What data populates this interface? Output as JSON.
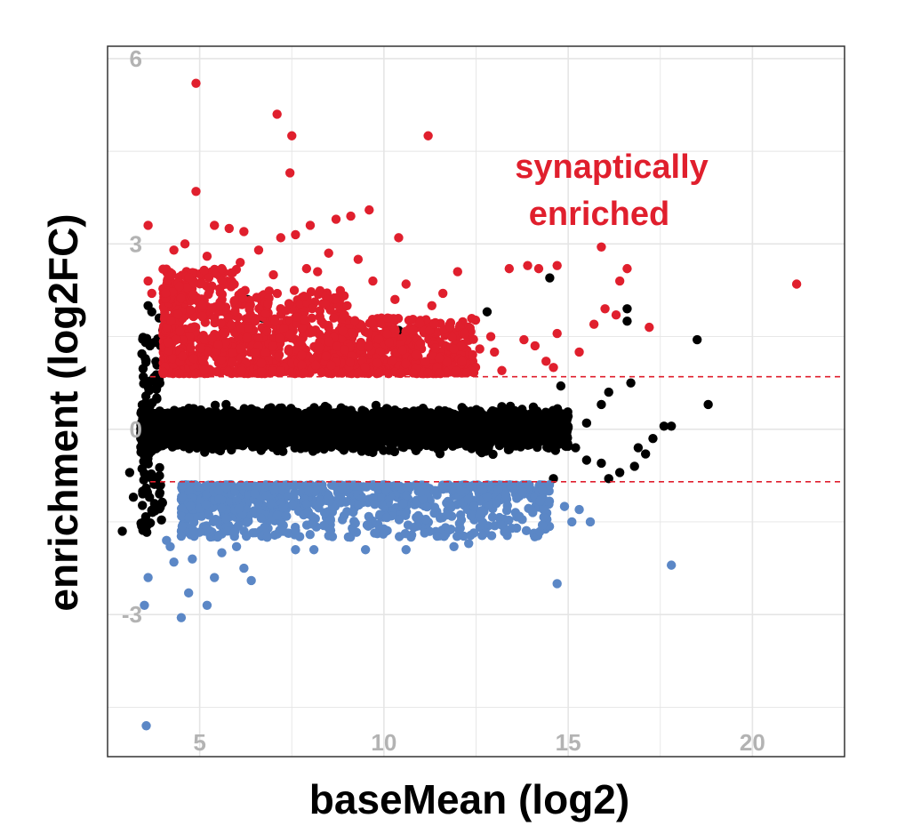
{
  "chart_data": {
    "type": "scatter",
    "title": "",
    "xlabel": "baseMean (log2)",
    "ylabel": "enrichment (log2FC)",
    "xlim": [
      2.5,
      22.5
    ],
    "ylim": [
      -5.3,
      6.2
    ],
    "x_ticks": [
      5,
      10,
      15,
      20
    ],
    "y_ticks": [
      -3,
      0,
      3
    ],
    "grid": true,
    "thresholds": [
      0.85,
      -0.85
    ],
    "annotation": {
      "lines": [
        "synaptically",
        "enriched"
      ],
      "color": "#e01f2d"
    },
    "colors": {
      "enriched": "#e01f2d",
      "depleted": "#5b87c6",
      "unchanged": "#000000",
      "threshold": "#e01f2d",
      "grid": "#e5e5e5"
    },
    "series": [
      {
        "group": "enriched",
        "points": [
          [
            4.9,
            5.6
          ],
          [
            7.1,
            5.1
          ],
          [
            7.5,
            4.75
          ],
          [
            11.2,
            4.75
          ],
          [
            7.45,
            4.15
          ],
          [
            4.9,
            3.85
          ],
          [
            9.6,
            3.55
          ],
          [
            9.1,
            3.45
          ],
          [
            8.7,
            3.4
          ],
          [
            3.6,
            3.3
          ],
          [
            5.4,
            3.3
          ],
          [
            5.8,
            3.25
          ],
          [
            6.2,
            3.2
          ],
          [
            7.2,
            3.1
          ],
          [
            7.6,
            3.15
          ],
          [
            8.0,
            3.3
          ],
          [
            10.4,
            3.1
          ],
          [
            15.9,
            2.95
          ],
          [
            16.6,
            2.6
          ],
          [
            14.7,
            2.65
          ],
          [
            14.2,
            2.6
          ],
          [
            13.9,
            2.65
          ],
          [
            13.4,
            2.6
          ],
          [
            16.4,
            2.4
          ],
          [
            21.2,
            2.35
          ],
          [
            16.0,
            1.95
          ],
          [
            16.3,
            1.85
          ],
          [
            15.7,
            1.7
          ],
          [
            17.2,
            1.65
          ],
          [
            15.3,
            1.25
          ],
          [
            14.7,
            1.55
          ],
          [
            14.6,
            1.0
          ],
          [
            3.6,
            2.4
          ],
          [
            3.7,
            2.2
          ],
          [
            4.3,
            2.9
          ],
          [
            4.6,
            3.0
          ],
          [
            12.2,
            1.55
          ],
          [
            12.6,
            1.3
          ],
          [
            13.0,
            1.25
          ],
          [
            13.2,
            0.95
          ],
          [
            12.9,
            1.5
          ],
          [
            13.8,
            1.45
          ],
          [
            14.1,
            1.35
          ],
          [
            14.4,
            1.1
          ],
          [
            12.0,
            2.55
          ],
          [
            11.6,
            2.2
          ],
          [
            11.3,
            2.0
          ],
          [
            10.6,
            2.35
          ],
          [
            10.3,
            2.1
          ],
          [
            11.9,
            1.3
          ],
          [
            11.5,
            1.15
          ],
          [
            10.8,
            1.6
          ],
          [
            10.1,
            1.8
          ],
          [
            9.3,
            2.75
          ],
          [
            8.5,
            2.85
          ],
          [
            8.2,
            2.55
          ],
          [
            9.0,
            2.0
          ],
          [
            9.7,
            2.4
          ],
          [
            5.2,
            2.8
          ],
          [
            5.6,
            2.6
          ],
          [
            6.1,
            2.7
          ],
          [
            6.6,
            2.9
          ],
          [
            7.0,
            2.5
          ],
          [
            7.9,
            2.6
          ]
        ],
        "band": {
          "x": [
            4.0,
            12.5
          ],
          "y_low": 0.9,
          "y_high": 2.6,
          "count": 1400
        }
      },
      {
        "group": "unchanged",
        "points": [
          [
            3.6,
            2.0
          ],
          [
            3.7,
            1.9
          ],
          [
            3.9,
            1.8
          ],
          [
            4.0,
            1.6
          ],
          [
            2.9,
            -1.65
          ],
          [
            3.2,
            -1.1
          ],
          [
            3.1,
            -0.7
          ],
          [
            18.5,
            1.45
          ],
          [
            18.8,
            0.4
          ],
          [
            17.8,
            0.05
          ],
          [
            17.6,
            0.05
          ],
          [
            17.3,
            -0.15
          ],
          [
            17.1,
            -0.4
          ],
          [
            16.7,
            0.75
          ],
          [
            16.6,
            1.95
          ],
          [
            16.6,
            1.75
          ],
          [
            16.9,
            -0.3
          ],
          [
            16.8,
            -0.6
          ],
          [
            16.4,
            -0.7
          ],
          [
            16.1,
            -0.8
          ],
          [
            15.9,
            -0.55
          ],
          [
            16.1,
            0.6
          ],
          [
            15.5,
            0.1
          ],
          [
            15.2,
            -0.3
          ],
          [
            15.5,
            -0.5
          ],
          [
            15.9,
            0.4
          ],
          [
            14.5,
            2.45
          ],
          [
            12.8,
            1.9
          ],
          [
            10.4,
            1.6
          ],
          [
            6.7,
            1.8
          ],
          [
            6.3,
            2.1
          ],
          [
            5.0,
            1.5
          ],
          [
            14.8,
            0.7
          ],
          [
            14.6,
            -0.8
          ]
        ],
        "band": {
          "x": [
            3.4,
            15.0
          ],
          "y_low": -0.85,
          "y_high": 0.85,
          "count": 5200
        }
      },
      {
        "group": "depleted",
        "points": [
          [
            3.55,
            -4.8
          ],
          [
            3.5,
            -2.85
          ],
          [
            3.6,
            -2.4
          ],
          [
            4.5,
            -3.05
          ],
          [
            4.7,
            -2.65
          ],
          [
            5.2,
            -2.85
          ],
          [
            4.3,
            -2.15
          ],
          [
            4.8,
            -2.1
          ],
          [
            5.4,
            -2.4
          ],
          [
            6.4,
            -2.45
          ],
          [
            6.2,
            -2.25
          ],
          [
            17.8,
            -2.2
          ],
          [
            14.7,
            -2.5
          ],
          [
            8.1,
            -1.95
          ],
          [
            7.6,
            -1.95
          ],
          [
            9.5,
            -1.95
          ],
          [
            10.6,
            -1.95
          ],
          [
            11.9,
            -1.9
          ],
          [
            12.3,
            -1.85
          ],
          [
            13.6,
            -1.6
          ],
          [
            14.3,
            -1.55
          ],
          [
            15.1,
            -1.5
          ],
          [
            15.3,
            -1.3
          ],
          [
            14.9,
            -1.25
          ],
          [
            15.6,
            -1.5
          ],
          [
            5.6,
            -2.0
          ],
          [
            6.0,
            -1.9
          ],
          [
            4.1,
            -1.8
          ],
          [
            4.2,
            -1.9
          ]
        ],
        "band": {
          "x": [
            4.5,
            14.5
          ],
          "y_low": -1.75,
          "y_high": -0.9,
          "count": 900
        }
      }
    ]
  }
}
